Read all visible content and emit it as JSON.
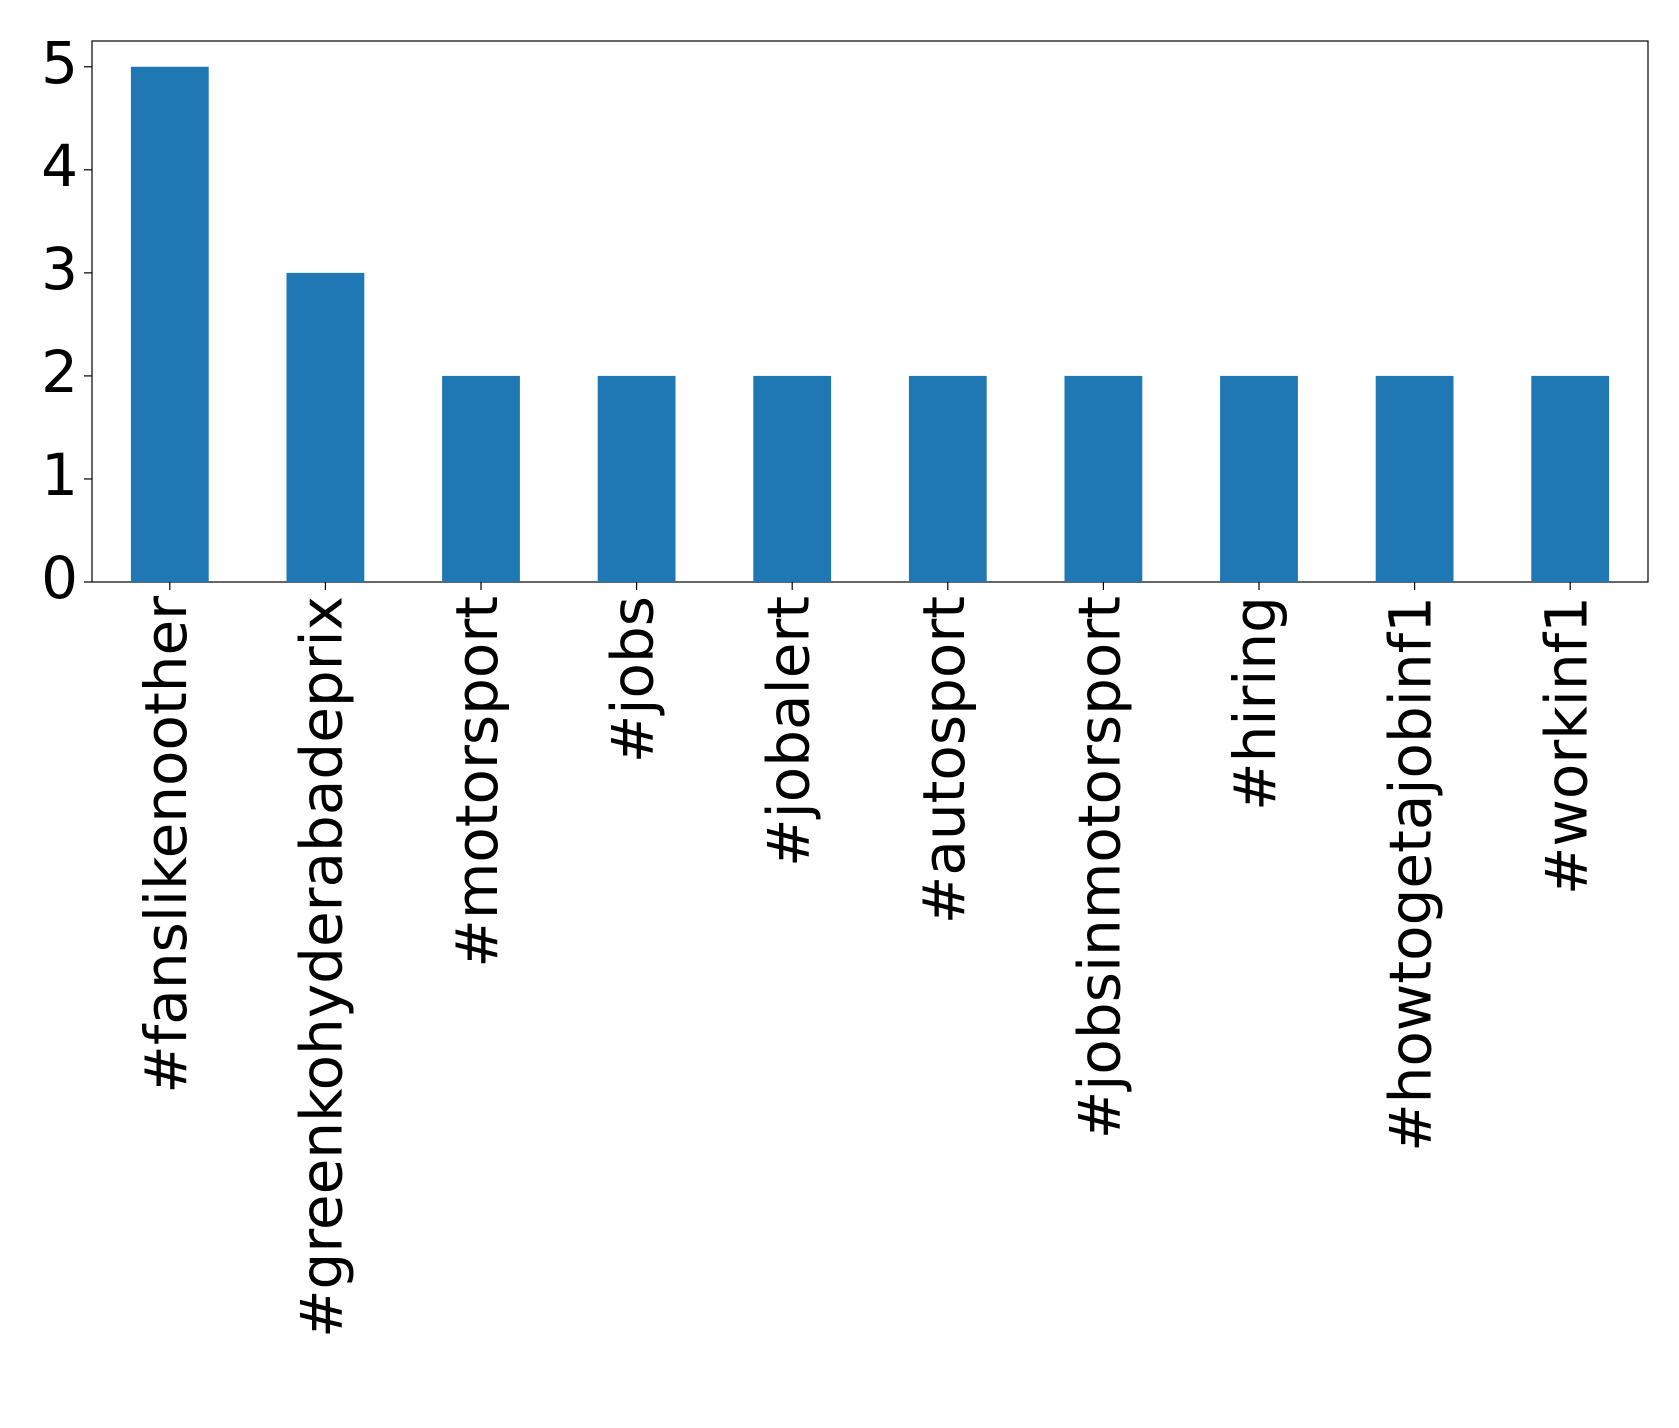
{
  "chart_data": {
    "type": "bar",
    "categories": [
      "#fanslikenoother",
      "#greenkohyderabadeprix",
      "#motorsport",
      "#jobs",
      "#jobalert",
      "#autosport",
      "#jobsinmotorsport",
      "#hiring",
      "#howtogetajobinf1",
      "#workinf1"
    ],
    "values": [
      5,
      3,
      2,
      2,
      2,
      2,
      2,
      2,
      2,
      2
    ],
    "color": "#1f77b4",
    "ylim": [
      0,
      5.25
    ],
    "yticks": [
      0,
      1,
      2,
      3,
      4,
      5
    ],
    "grid": false
  }
}
